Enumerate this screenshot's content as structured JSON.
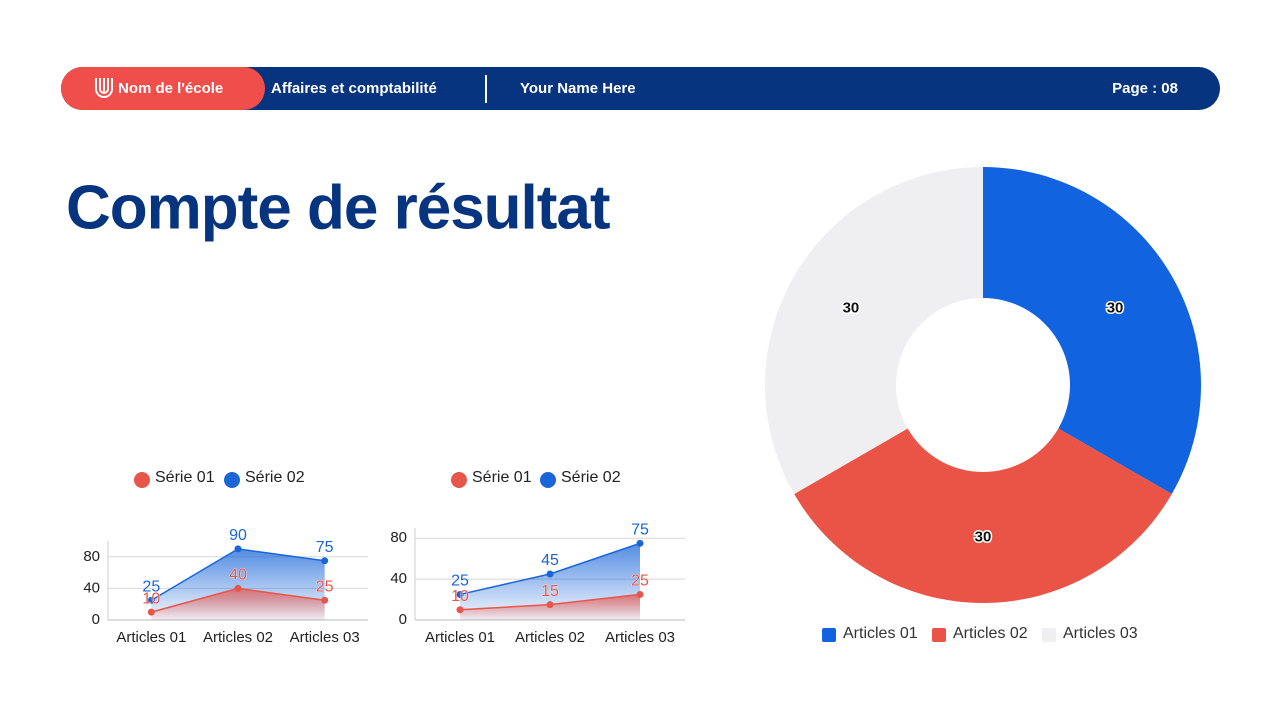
{
  "header": {
    "school": "Nom de l'école",
    "course": "Affaires et comptabilité",
    "name": "Your Name Here",
    "page": "Page : 08"
  },
  "title": "Compte de résultat",
  "chart_data": [
    {
      "type": "area",
      "categories": [
        "Articles 01",
        "Articles 02",
        "Articles 03"
      ],
      "series": [
        {
          "name": "Série 01",
          "color": "#e8554a",
          "values": [
            10,
            40,
            25
          ]
        },
        {
          "name": "Série 02",
          "color": "#1a66d9",
          "values": [
            25,
            90,
            75
          ]
        }
      ],
      "ylim": [
        0,
        100
      ],
      "yticks": [
        0,
        40,
        80
      ],
      "grid": true
    },
    {
      "type": "area",
      "categories": [
        "Articles 01",
        "Articles 02",
        "Articles 03"
      ],
      "series": [
        {
          "name": "Série 01",
          "color": "#e8554a",
          "values": [
            10,
            15,
            25
          ]
        },
        {
          "name": "Série 02",
          "color": "#1a66d9",
          "values": [
            25,
            45,
            75
          ]
        }
      ],
      "ylim": [
        0,
        90
      ],
      "yticks": [
        0,
        40,
        80
      ],
      "grid": true
    },
    {
      "type": "donut",
      "categories": [
        "Articles 01",
        "Articles 02",
        "Articles 03"
      ],
      "values": [
        30,
        30,
        30
      ],
      "colors": [
        "#1263e0",
        "#ea5446",
        "#efeef1"
      ]
    }
  ]
}
